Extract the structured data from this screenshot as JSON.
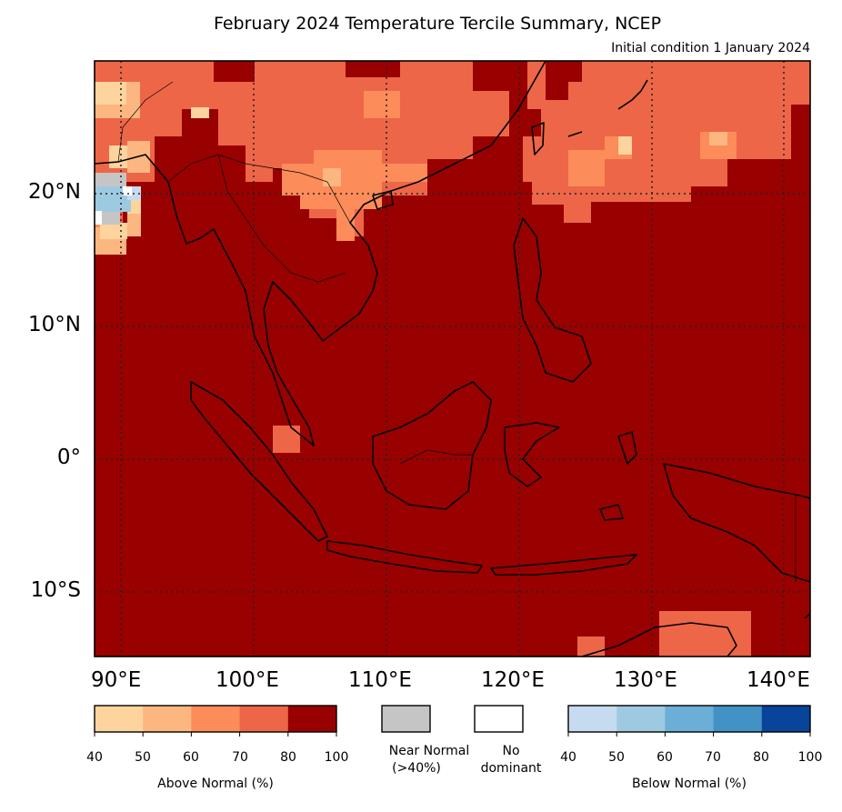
{
  "title": "February 2024 Temperature Tercile Summary, NCEP",
  "subtitle": "Initial condition 1 January 2024",
  "map": {
    "lat_labels": [
      "20°N",
      "10°N",
      "0°",
      "10°S"
    ],
    "lon_labels": [
      "90°E",
      "100°E",
      "110°E",
      "120°E",
      "130°E",
      "140°E"
    ],
    "extent": {
      "lon_min": 88,
      "lon_max": 142,
      "lat_min": -15,
      "lat_max": 30
    },
    "grid": "dotted",
    "colors": {
      "above_80_100": "#990000",
      "above_70_80": "#ed6648",
      "above_60_70": "#fc8c59",
      "above_50_60": "#fcb680",
      "above_40_50": "#fdd49e",
      "near_normal": "#c5c5c5",
      "below_40_50": "#c6dbef",
      "below_50_60": "#9ecae1",
      "coast": "#000000"
    }
  },
  "colorbars": {
    "above": {
      "label": "Above Normal (%)",
      "ticks": [
        "40",
        "50",
        "60",
        "70",
        "80",
        "100"
      ],
      "colors": [
        "#fdd49e",
        "#fcb680",
        "#fc8c59",
        "#ed6648",
        "#990000"
      ]
    },
    "near_normal": {
      "label_line1": "Near Normal",
      "label_line2": "(>40%)",
      "color": "#c5c5c5"
    },
    "no_dominant": {
      "label_line1": "No",
      "label_line2": "dominant",
      "color": "#ffffff"
    },
    "below": {
      "label": "Below Normal (%)",
      "ticks": [
        "40",
        "50",
        "60",
        "70",
        "80",
        "100"
      ],
      "colors": [
        "#c6dbef",
        "#9ecae1",
        "#6baed6",
        "#4292c6",
        "#08449a"
      ]
    }
  }
}
